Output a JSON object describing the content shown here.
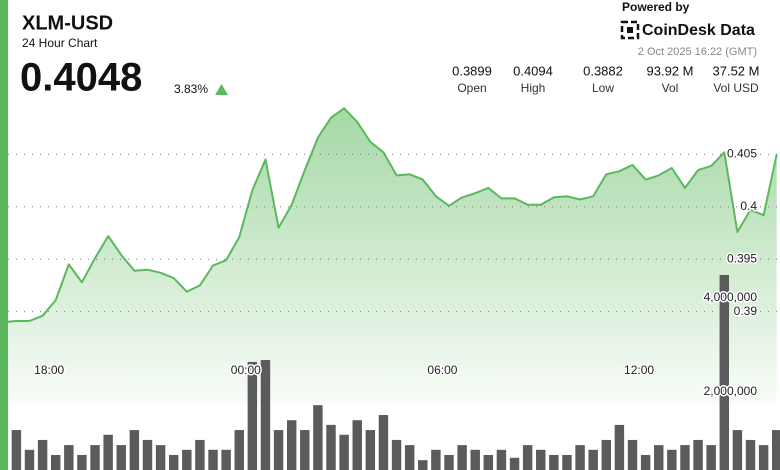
{
  "header": {
    "symbol": "XLM-USD",
    "subtitle": "24 Hour Chart",
    "price": "0.4048",
    "change": "3.83%"
  },
  "branding": {
    "powered_by": "Powered by",
    "brand": "CoinDesk Data",
    "timestamp": "2 Oct 2025 16:22 (GMT)"
  },
  "stats": [
    {
      "value": "0.3899",
      "label": "Open"
    },
    {
      "value": "0.4094",
      "label": "High"
    },
    {
      "value": "0.3882",
      "label": "Low"
    },
    {
      "value": "93.92 M",
      "label": "Vol"
    },
    {
      "value": "37.52 M",
      "label": "Vol USD"
    }
  ],
  "chart_data": {
    "type": "line",
    "x": [
      16.6,
      17,
      17.4,
      17.8,
      18.2,
      18.6,
      19,
      19.4,
      19.8,
      20.2,
      20.6,
      21,
      21.4,
      21.8,
      22.2,
      22.6,
      23,
      23.4,
      23.8,
      24.2,
      24.6,
      25,
      25.4,
      25.8,
      26.2,
      26.6,
      27,
      27.4,
      27.8,
      28.2,
      28.6,
      29,
      29.4,
      29.8,
      30.2,
      30.6,
      31,
      31.4,
      31.8,
      32.2,
      32.6,
      33,
      33.4,
      33.8,
      34.2,
      34.6,
      35,
      35.4,
      35.8,
      36.2,
      36.6,
      37,
      37.4,
      37.8,
      38.2,
      38.6,
      39,
      39.4,
      39.8,
      40.2
    ],
    "xlim": [
      16.5,
      40.3
    ],
    "xticks": [
      {
        "value": 18,
        "label": "18:00"
      },
      {
        "value": 24,
        "label": "00:00"
      },
      {
        "value": 30,
        "label": "06:00"
      },
      {
        "value": 36,
        "label": "12:00"
      }
    ],
    "ylim": [
      0.385,
      0.41
    ],
    "yticks": [
      0.39,
      0.395,
      0.4,
      0.405
    ],
    "y2lim": [
      0,
      8000000
    ],
    "y2ticks": [
      {
        "value": 2000000,
        "label": "2,000,000"
      },
      {
        "value": 4000000,
        "label": "4,000,000"
      }
    ],
    "grid": true,
    "series": [
      {
        "color": "#5cb85c",
        "values": [
          0.389,
          0.3891,
          0.3891,
          0.3896,
          0.3911,
          0.3945,
          0.3928,
          0.3951,
          0.3972,
          0.3954,
          0.3939,
          0.394,
          0.3937,
          0.3932,
          0.3919,
          0.3925,
          0.3944,
          0.3949,
          0.3971,
          0.4016,
          0.4045,
          0.398,
          0.4002,
          0.4035,
          0.4066,
          0.4085,
          0.4094,
          0.4081,
          0.4062,
          0.4052,
          0.403,
          0.4031,
          0.4026,
          0.401,
          0.4001,
          0.4009,
          0.4013,
          0.4018,
          0.4008,
          0.4008,
          0.4002,
          0.4002,
          0.4009,
          0.401,
          0.4007,
          0.401,
          0.4031,
          0.4034,
          0.404,
          0.4026,
          0.403,
          0.4037,
          0.4018,
          0.4035,
          0.4039,
          0.4052,
          0.3976,
          0.3997,
          0.3992,
          0.405
        ]
      },
      {
        "type": "bar",
        "axis": "y2",
        "color": "#5b5b5b",
        "values": [
          1620000,
          1190000,
          770000,
          980000,
          660000,
          870000,
          660000,
          870000,
          1090000,
          870000,
          1190000,
          980000,
          870000,
          660000,
          770000,
          980000,
          770000,
          770000,
          1190000,
          2640000,
          2680000,
          1190000,
          1400000,
          1190000,
          1720000,
          1300000,
          1090000,
          1400000,
          1190000,
          1510000,
          980000,
          870000,
          550000,
          770000,
          660000,
          870000,
          770000,
          660000,
          770000,
          600000,
          870000,
          770000,
          660000,
          660000,
          870000,
          770000,
          980000,
          1300000,
          980000,
          660000,
          870000,
          770000,
          870000,
          980000,
          870000,
          4490000,
          1190000,
          980000,
          870000,
          1190000
        ]
      }
    ]
  }
}
